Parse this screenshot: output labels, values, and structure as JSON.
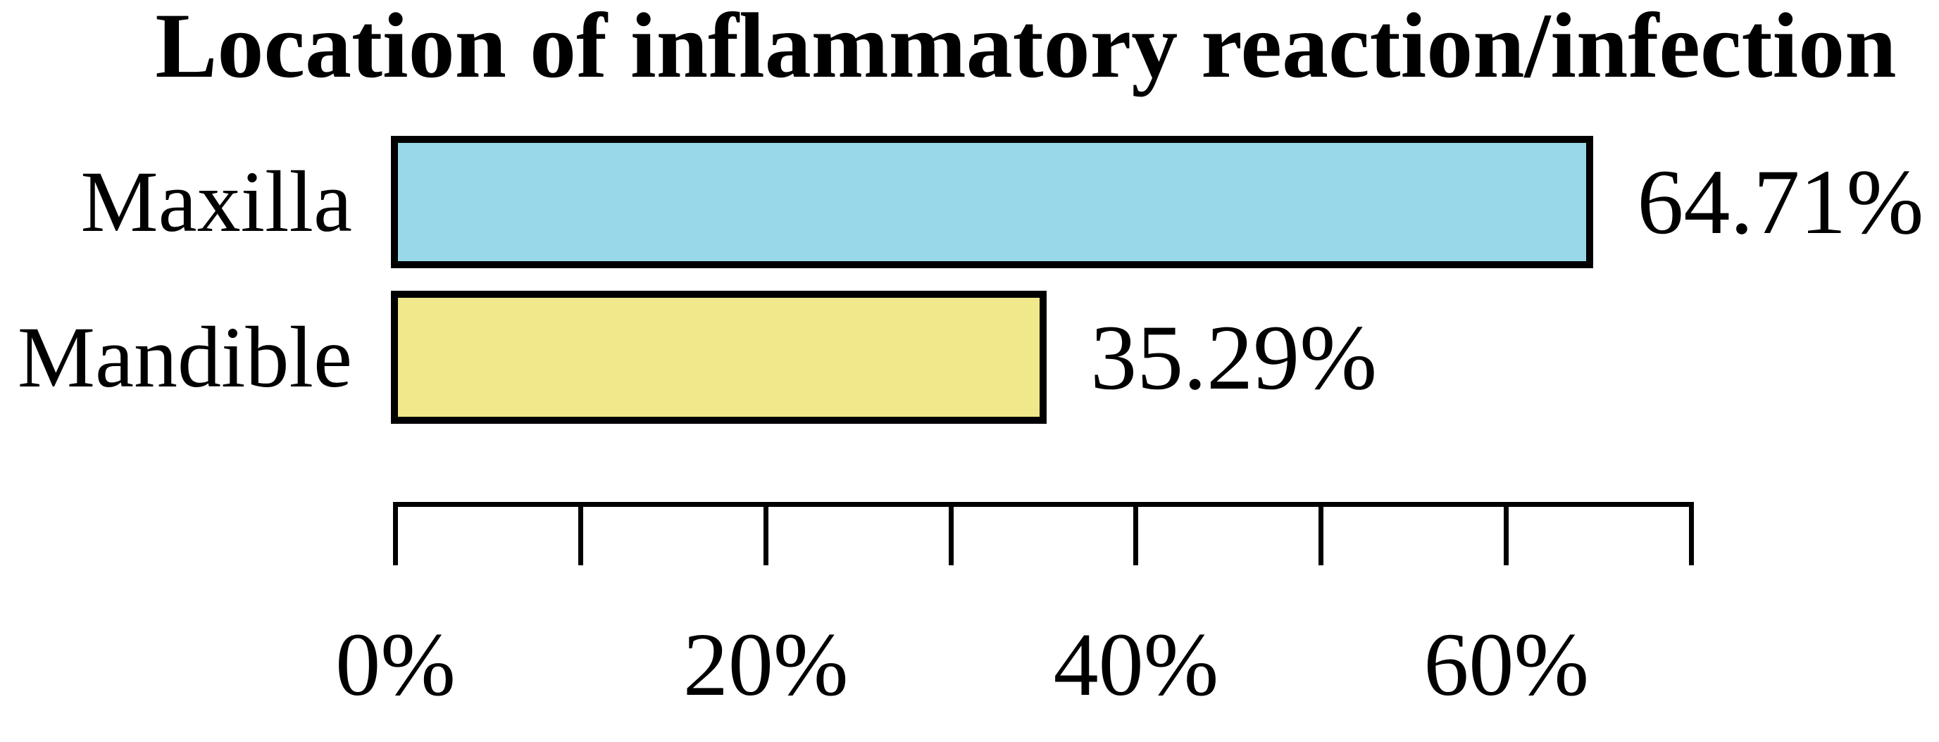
{
  "figure": {
    "background": "#ffffff",
    "text_color": "#000000"
  },
  "chart_data": {
    "type": "bar",
    "orientation": "horizontal",
    "title": "Location of inflammatory reaction/infection",
    "categories": [
      "Maxilla",
      "Mandible"
    ],
    "values": [
      64.71,
      35.29
    ],
    "value_labels": [
      "64.71%",
      "35.29%"
    ],
    "bar_colors": [
      "#99d8e8",
      "#f0e88a"
    ],
    "bar_border_color": "#000000",
    "axis_color": "#000000",
    "xlim": [
      0,
      70
    ],
    "x_ticks": [
      0,
      10,
      20,
      30,
      40,
      50,
      60,
      70
    ],
    "x_tick_labels": [
      {
        "pct": 0,
        "label": "0%"
      },
      {
        "pct": 20,
        "label": "20%"
      },
      {
        "pct": 40,
        "label": "40%"
      },
      {
        "pct": 60,
        "label": "60%"
      }
    ],
    "grid": false,
    "legend": "none"
  }
}
